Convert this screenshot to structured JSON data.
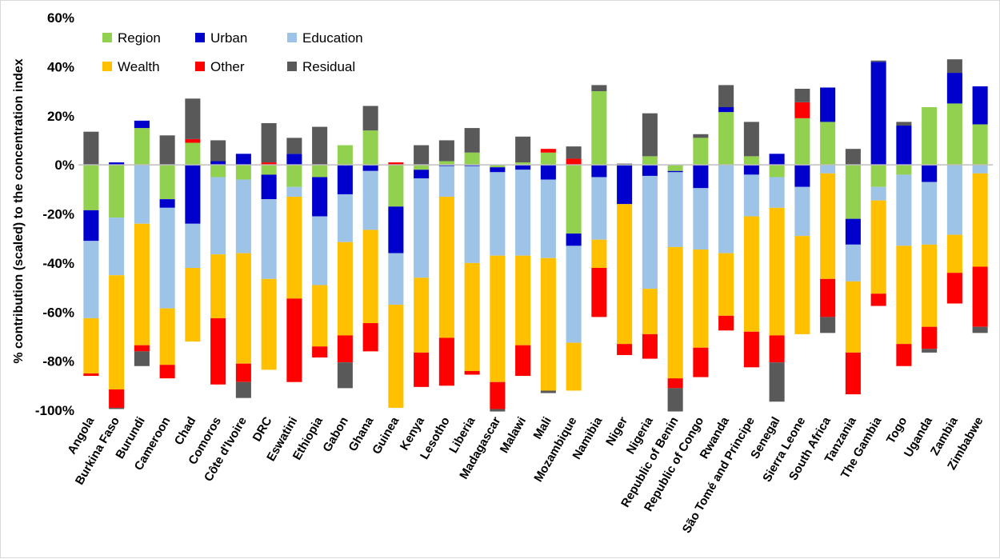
{
  "chart_data": {
    "type": "bar",
    "stacked": true,
    "ylabel": "% contribution (scaled) to the concentration index",
    "ylim": [
      -100,
      60
    ],
    "yticks": [
      "60%",
      "40%",
      "20%",
      "0%",
      "-20%",
      "-40%",
      "-60%",
      "-80%",
      "-100%"
    ],
    "ytick_values": [
      60,
      40,
      20,
      0,
      -20,
      -40,
      -60,
      -80,
      -100
    ],
    "grid": false,
    "legend_position": "top-left",
    "categories": [
      "Angola",
      "Burkina Faso",
      "Burundi",
      "Cameroon",
      "Chad",
      "Comoros",
      "Côte d'Ivoire",
      "DRC",
      "Eswatini",
      "Ethiopia",
      "Gabon",
      "Ghana",
      "Guinea",
      "Kenya",
      "Lesotho",
      "Liberia",
      "Madagascar",
      "Malawi",
      "Mali",
      "Mozambique",
      "Namibia",
      "Niger",
      "Nigeria",
      "Republic of Benin",
      "Republic of Congo",
      "Rwanda",
      "São Tomé and Principe",
      "Senegal",
      "Sierra Leone",
      "South Africa",
      "Tanzania",
      "The Gambia",
      "Togo",
      "Uganda",
      "Zambia",
      "Zimbabwe"
    ],
    "legend": [
      {
        "name": "Region",
        "color": "#92d050"
      },
      {
        "name": "Urban",
        "color": "#0000cc"
      },
      {
        "name": "Education",
        "color": "#9dc3e6"
      },
      {
        "name": "Wealth",
        "color": "#ffc000"
      },
      {
        "name": "Other",
        "color": "#ff0000"
      },
      {
        "name": "Residual",
        "color": "#595959"
      }
    ],
    "series": [
      {
        "name": "Region",
        "color": "#92d050",
        "values": [
          -18.5,
          -21.5,
          15,
          -14,
          9,
          -5,
          -6,
          -4,
          -9,
          -5,
          8,
          14,
          -17,
          -2,
          1.5,
          5,
          -1,
          1,
          5,
          -28,
          30,
          0,
          3.5,
          -2.5,
          11,
          21.5,
          3.5,
          -5,
          19,
          17.5,
          -22,
          -9,
          -4,
          23.5,
          25,
          16.5
        ]
      },
      {
        "name": "Urban",
        "color": "#0000cc",
        "values": [
          -12.5,
          1,
          3,
          -3.5,
          -24,
          1.5,
          4.5,
          -10,
          4.5,
          -16,
          -12,
          -2.5,
          -19,
          -3.5,
          -0.5,
          -0.5,
          -2,
          -2,
          -6,
          -5,
          -5,
          -16,
          -4.5,
          -0.5,
          -9.5,
          2,
          -4,
          4.5,
          -9,
          14,
          -10.5,
          42,
          16,
          -7,
          12.5,
          15.5
        ]
      },
      {
        "name": "Education",
        "color": "#9dc3e6",
        "values": [
          -31.5,
          -23.5,
          -24,
          -41,
          -18,
          -31.5,
          -30,
          -32.5,
          -4,
          -28,
          -19.5,
          -24,
          -21,
          -40.5,
          -12.5,
          -39.5,
          -34,
          -35,
          -32,
          -39.5,
          -25.5,
          0,
          -46,
          -30.5,
          -25,
          -36,
          -17,
          -12.5,
          -20,
          -3.5,
          -15,
          -5.5,
          -29,
          -25.5,
          -28.5,
          -3.5
        ]
      },
      {
        "name": "Wealth",
        "color": "#ffc000",
        "values": [
          -22.5,
          -46.5,
          -49.5,
          -23,
          -30,
          -26,
          -45,
          -37,
          -41.5,
          -25,
          -38,
          -38,
          -42,
          -30.5,
          -57.5,
          -44,
          -51.5,
          -36.5,
          -54,
          -19.5,
          -11.5,
          -57,
          -18.5,
          -53.5,
          -40,
          -25.5,
          -47,
          -52,
          -40,
          -43,
          -29,
          -38,
          -40,
          -33.5,
          -15.5,
          -38
        ]
      },
      {
        "name": "Other",
        "color": "#ff0000",
        "values": [
          -1,
          -7.5,
          -2.5,
          -5.5,
          1.5,
          -27,
          -7.5,
          1,
          -34,
          -4.5,
          -11,
          -11.5,
          1,
          -14,
          -19.5,
          -1.5,
          -11,
          -12.5,
          1.5,
          2.5,
          -20,
          -4.5,
          -10,
          -4,
          -12,
          -6,
          -14.5,
          -11,
          6.5,
          -15.5,
          -17,
          -5,
          -9,
          -9,
          -12.5,
          -24.5
        ]
      },
      {
        "name": "Residual",
        "color": "#595959",
        "values": [
          13.5,
          -0.5,
          -6,
          12,
          16.5,
          8.5,
          -6.5,
          16,
          6.5,
          15.5,
          -10.5,
          10,
          0,
          8,
          8.5,
          10,
          -1,
          10.5,
          -1,
          5,
          2.5,
          0.5,
          17.5,
          -9.5,
          1.5,
          9,
          14,
          -16,
          5.5,
          -6.5,
          6.5,
          0.5,
          1.5,
          -1.5,
          5.5,
          -2.5
        ]
      }
    ]
  }
}
